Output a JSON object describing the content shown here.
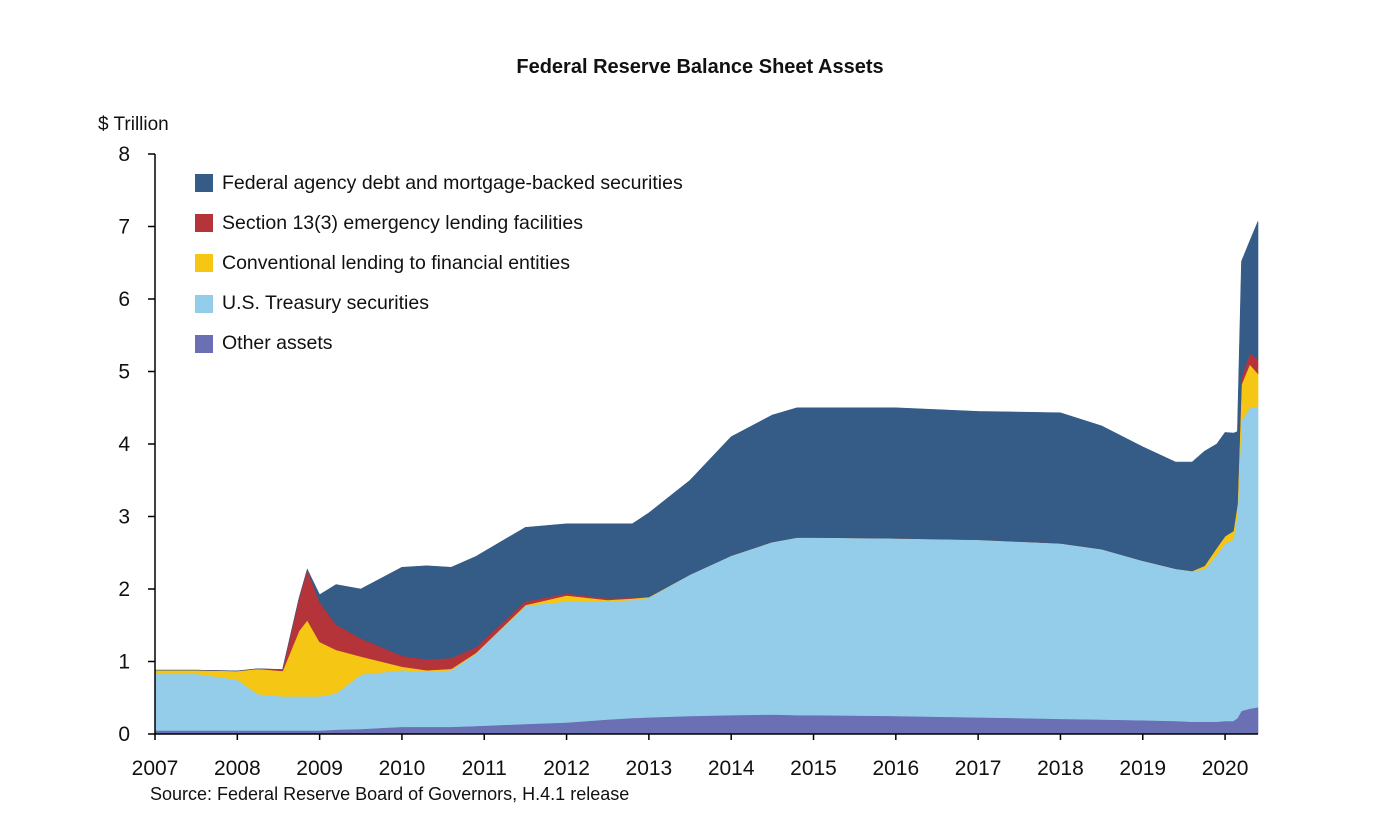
{
  "chart_data": {
    "type": "area",
    "stacked": true,
    "title": "Federal Reserve Balance Sheet Assets",
    "ylabel": "$ Trillion",
    "xlabel": "",
    "source": "Source: Federal Reserve Board of Governors, H.4.1 release",
    "ylim": [
      0,
      8
    ],
    "xlim": [
      2007,
      2020.4
    ],
    "yticks": [
      "0",
      "1",
      "2",
      "3",
      "4",
      "5",
      "6",
      "7",
      "8"
    ],
    "xticks": [
      "2007",
      "2008",
      "2009",
      "2010",
      "2011",
      "2012",
      "2013",
      "2014",
      "2015",
      "2016",
      "2017",
      "2018",
      "2019",
      "2020"
    ],
    "legend_position": "top-left",
    "x": [
      2007,
      2007.5,
      2008,
      2008.25,
      2008.55,
      2008.75,
      2008.85,
      2009,
      2009.2,
      2009.5,
      2010,
      2010.3,
      2010.6,
      2010.9,
      2011.5,
      2012,
      2012.5,
      2012.8,
      2013,
      2013.5,
      2014,
      2014.5,
      2014.8,
      2015,
      2016,
      2017,
      2018,
      2018.5,
      2019,
      2019.4,
      2019.6,
      2019.75,
      2019.9,
      2020,
      2020.1,
      2020.15,
      2020.2,
      2020.3,
      2020.4
    ],
    "series": [
      {
        "name": "Other assets",
        "color": "#6b6fb4",
        "values": [
          0.05,
          0.05,
          0.05,
          0.05,
          0.05,
          0.05,
          0.05,
          0.05,
          0.06,
          0.07,
          0.1,
          0.1,
          0.1,
          0.11,
          0.14,
          0.16,
          0.2,
          0.22,
          0.23,
          0.25,
          0.26,
          0.27,
          0.26,
          0.26,
          0.25,
          0.23,
          0.21,
          0.2,
          0.19,
          0.18,
          0.17,
          0.17,
          0.17,
          0.18,
          0.18,
          0.22,
          0.32,
          0.35,
          0.37
        ]
      },
      {
        "name": "U.S. Treasury securities",
        "color": "#94cde9",
        "values": [
          0.78,
          0.78,
          0.7,
          0.5,
          0.47,
          0.47,
          0.47,
          0.47,
          0.5,
          0.75,
          0.78,
          0.76,
          0.78,
          1.0,
          1.63,
          1.67,
          1.63,
          1.63,
          1.65,
          1.95,
          2.2,
          2.38,
          2.45,
          2.45,
          2.45,
          2.45,
          2.42,
          2.35,
          2.2,
          2.1,
          2.08,
          2.1,
          2.3,
          2.45,
          2.5,
          2.8,
          4.0,
          4.15,
          4.15
        ]
      },
      {
        "name": "Conventional lending to financial entities",
        "color": "#f5c614",
        "values": [
          0.05,
          0.05,
          0.12,
          0.35,
          0.35,
          0.9,
          1.05,
          0.75,
          0.6,
          0.25,
          0.05,
          0.02,
          0.02,
          0.01,
          0.01,
          0.08,
          0.02,
          0.02,
          0.01,
          0.0,
          0.0,
          0.0,
          0.0,
          0.0,
          0.0,
          0.0,
          0.0,
          0.0,
          0.0,
          0.0,
          0.0,
          0.05,
          0.1,
          0.1,
          0.12,
          0.15,
          0.5,
          0.6,
          0.45
        ]
      },
      {
        "name": "Section 13(3) emergency lending facilities",
        "color": "#b5343a",
        "values": [
          0.0,
          0.0,
          0.0,
          0.0,
          0.02,
          0.45,
          0.7,
          0.55,
          0.35,
          0.25,
          0.15,
          0.15,
          0.15,
          0.08,
          0.05,
          0.03,
          0.02,
          0.01,
          0.0,
          0.0,
          0.0,
          0.0,
          0.0,
          0.0,
          0.0,
          0.0,
          0.0,
          0.0,
          0.0,
          0.0,
          0.0,
          0.0,
          0.0,
          0.0,
          0.0,
          0.0,
          0.1,
          0.15,
          0.2
        ]
      },
      {
        "name": "Federal agency debt and mortgage-backed securities",
        "color": "#355b87",
        "values": [
          0.0,
          0.0,
          0.0,
          0.0,
          0.0,
          0.0,
          0.0,
          0.1,
          0.55,
          0.68,
          1.22,
          1.29,
          1.25,
          1.25,
          1.02,
          0.96,
          1.03,
          1.02,
          1.16,
          1.3,
          1.64,
          1.75,
          1.79,
          1.79,
          1.8,
          1.77,
          1.8,
          1.7,
          1.57,
          1.47,
          1.5,
          1.58,
          1.43,
          1.43,
          1.35,
          1.0,
          1.6,
          1.55,
          1.9
        ]
      }
    ]
  },
  "legend": {
    "items": [
      {
        "label": "Federal agency debt and mortgage-backed securities",
        "color": "#355b87"
      },
      {
        "label": "Section 13(3) emergency lending facilities",
        "color": "#b5343a"
      },
      {
        "label": "Conventional lending to financial entities",
        "color": "#f5c614"
      },
      {
        "label": "U.S. Treasury securities",
        "color": "#94cde9"
      },
      {
        "label": "Other assets",
        "color": "#6b6fb4"
      }
    ]
  }
}
